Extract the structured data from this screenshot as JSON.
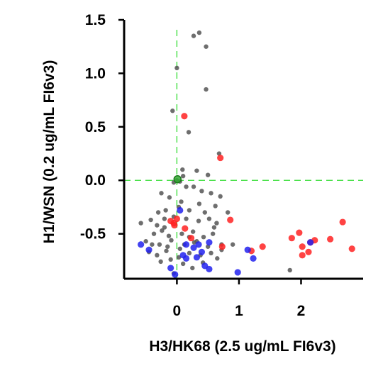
{
  "chart_data": {
    "type": "scatter",
    "xlabel": "H3/HK68 (2.5 ug/mL FI6v3)",
    "ylabel": "H1/WSN (0.2 ug/mL FI6v3)",
    "xlim": [
      -0.85,
      3.0
    ],
    "ylim": [
      -0.92,
      1.5
    ],
    "x_ticks": [
      0,
      1,
      2
    ],
    "x_tick_labels": [
      "0",
      "1",
      "2"
    ],
    "y_ticks": [
      -0.5,
      0.0,
      0.5,
      1.0,
      1.5
    ],
    "y_tick_labels": [
      "-0.5",
      "0.0",
      "0.5",
      "1.0",
      "1.5"
    ],
    "grid": false,
    "reference_lines": [
      {
        "orientation": "vertical",
        "value": 0,
        "color": "#33dd33",
        "style": "dashed"
      },
      {
        "orientation": "horizontal",
        "value": 0,
        "color": "#33dd33",
        "style": "dashed"
      }
    ],
    "series": [
      {
        "color": "#555555",
        "points": [
          [
            0.27,
            1.35
          ],
          [
            0.36,
            1.38
          ],
          [
            0.47,
            1.25
          ],
          [
            0.0,
            1.05
          ],
          [
            0.47,
            0.85
          ],
          [
            -0.07,
            0.65
          ],
          [
            0.19,
            0.45
          ],
          [
            0.68,
            0.25
          ],
          [
            0.09,
            0.1
          ],
          [
            0.32,
            0.09
          ],
          [
            0.1,
            0.04
          ],
          [
            0.5,
            0.05
          ],
          [
            -0.05,
            -0.02
          ],
          [
            0.0,
            0.0
          ],
          [
            0.05,
            -0.01
          ],
          [
            0.15,
            -0.06
          ],
          [
            0.27,
            -0.06
          ],
          [
            0.4,
            -0.1
          ],
          [
            0.55,
            -0.12
          ],
          [
            0.7,
            -0.15
          ],
          [
            -0.25,
            -0.12
          ],
          [
            -0.12,
            -0.16
          ],
          [
            0.07,
            -0.2
          ],
          [
            0.36,
            -0.22
          ],
          [
            0.62,
            -0.24
          ],
          [
            -0.3,
            -0.3
          ],
          [
            -0.18,
            -0.28
          ],
          [
            0.03,
            -0.25
          ],
          [
            0.2,
            -0.28
          ],
          [
            0.45,
            -0.3
          ],
          [
            0.82,
            -0.3
          ],
          [
            -0.58,
            -0.4
          ],
          [
            -0.42,
            -0.37
          ],
          [
            -0.32,
            -0.42
          ],
          [
            -0.2,
            -0.36
          ],
          [
            -0.05,
            -0.34
          ],
          [
            0.15,
            -0.36
          ],
          [
            0.35,
            -0.38
          ],
          [
            0.52,
            -0.36
          ],
          [
            0.64,
            -0.4
          ],
          [
            -0.37,
            -0.5
          ],
          [
            -0.24,
            -0.47
          ],
          [
            -0.13,
            -0.52
          ],
          [
            0.08,
            -0.5
          ],
          [
            0.26,
            -0.48
          ],
          [
            0.43,
            -0.53
          ],
          [
            0.58,
            -0.5
          ],
          [
            -0.5,
            -0.57
          ],
          [
            -0.28,
            -0.6
          ],
          [
            -0.09,
            -0.56
          ],
          [
            0.12,
            -0.6
          ],
          [
            0.32,
            -0.57
          ],
          [
            0.5,
            -0.62
          ],
          [
            0.72,
            -0.6
          ],
          [
            0.9,
            -0.6
          ],
          [
            -0.45,
            -0.67
          ],
          [
            -0.32,
            -0.7
          ],
          [
            -0.17,
            -0.66
          ],
          [
            0.03,
            -0.72
          ],
          [
            0.2,
            -0.68
          ],
          [
            0.38,
            -0.7
          ],
          [
            0.55,
            -0.68
          ],
          [
            0.72,
            -0.65
          ],
          [
            -0.26,
            -0.76
          ],
          [
            -0.1,
            -0.74
          ],
          [
            0.1,
            -0.78
          ],
          [
            0.42,
            -0.77
          ],
          [
            0.65,
            -0.73
          ],
          [
            1.82,
            -0.84
          ],
          [
            0.25,
            -0.82
          ],
          [
            -0.05,
            -0.87
          ],
          [
            0.28,
            -0.58
          ],
          [
            -0.2,
            -0.44
          ],
          [
            0.6,
            -0.44
          ],
          [
            0.2,
            -0.53
          ],
          [
            -0.4,
            -0.6
          ],
          [
            -0.15,
            -0.62
          ],
          [
            0.05,
            -0.64
          ]
        ]
      },
      {
        "color": "#ff2222",
        "points": [
          [
            0.12,
            0.6
          ],
          [
            0.7,
            0.21
          ],
          [
            0.86,
            -0.37
          ],
          [
            -0.1,
            -0.38
          ],
          [
            -0.04,
            -0.42
          ],
          [
            -0.05,
            -0.4
          ],
          [
            0.0,
            -0.36
          ],
          [
            0.13,
            -0.45
          ],
          [
            0.23,
            -0.54
          ],
          [
            0.73,
            -0.62
          ],
          [
            1.2,
            -0.66
          ],
          [
            1.38,
            -0.62
          ],
          [
            1.85,
            -0.54
          ],
          [
            1.97,
            -0.49
          ],
          [
            2.02,
            -0.62
          ],
          [
            2.02,
            -0.7
          ],
          [
            2.12,
            -0.67
          ],
          [
            2.15,
            -0.58
          ],
          [
            2.22,
            -0.56
          ],
          [
            2.47,
            -0.55
          ],
          [
            2.67,
            -0.39
          ],
          [
            2.82,
            -0.64
          ]
        ]
      },
      {
        "color": "#2222ee",
        "points": [
          [
            0.05,
            -0.28
          ],
          [
            -0.58,
            -0.6
          ],
          [
            -0.45,
            -0.65
          ],
          [
            0.15,
            -0.6
          ],
          [
            0.27,
            -0.63
          ],
          [
            0.35,
            -0.6
          ],
          [
            0.52,
            -0.58
          ],
          [
            0.4,
            -0.67
          ],
          [
            0.1,
            -0.7
          ],
          [
            0.15,
            -0.73
          ],
          [
            0.32,
            -0.72
          ],
          [
            0.45,
            -0.8
          ],
          [
            0.52,
            -0.83
          ],
          [
            0.98,
            -0.86
          ],
          [
            -0.1,
            -0.82
          ],
          [
            -0.03,
            -0.88
          ],
          [
            1.14,
            -0.65
          ],
          [
            1.23,
            -0.73
          ],
          [
            2.15,
            -0.58
          ]
        ]
      },
      {
        "color": "#33aa33",
        "points": [
          [
            0.01,
            0.01
          ]
        ]
      }
    ]
  }
}
